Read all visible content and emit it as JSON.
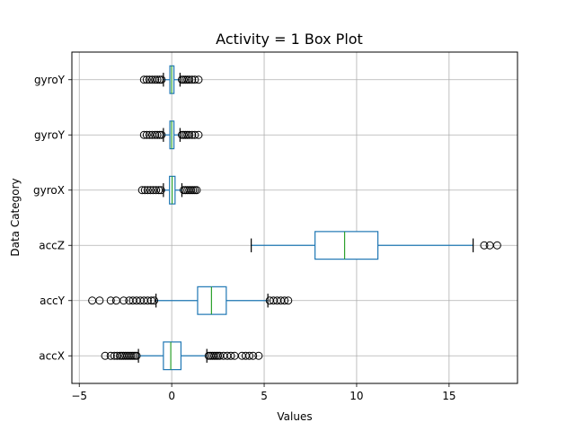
{
  "chart_data": {
    "type": "boxplot",
    "orientation": "horizontal",
    "title": "Activity = 1  Box Plot",
    "xlabel": "Values",
    "ylabel": "Data Category",
    "xlim": [
      -5.4,
      18.7
    ],
    "xticks": [
      -5,
      0,
      5,
      10,
      15
    ],
    "grid": true,
    "box_color": "#1f77b4",
    "median_color": "#2ca02c",
    "categories": [
      "accX",
      "accY",
      "accZ",
      "gyroX",
      "gyroY",
      "gyroY"
    ],
    "boxes": [
      {
        "label": "accX",
        "whisker_low": -1.8,
        "q1": -0.45,
        "median": -0.05,
        "q3": 0.5,
        "whisker_high": 1.9,
        "outliers_low": [
          -3.6,
          -3.3,
          -3.1,
          -2.95,
          -2.8,
          -2.7,
          -2.6,
          -2.5,
          -2.4,
          -2.3,
          -2.2,
          -2.1,
          -2.0,
          -1.9
        ],
        "outliers_high": [
          2.0,
          2.1,
          2.2,
          2.3,
          2.4,
          2.5,
          2.6,
          2.8,
          3.0,
          3.2,
          3.4,
          3.8,
          4.0,
          4.2,
          4.4,
          4.7
        ]
      },
      {
        "label": "accY",
        "whisker_low": -0.85,
        "q1": 1.4,
        "median": 2.15,
        "q3": 2.95,
        "whisker_high": 5.2,
        "outliers_low": [
          -4.3,
          -3.9,
          -3.3,
          -3.0,
          -2.6,
          -2.3,
          -2.1,
          -1.9,
          -1.7,
          -1.5,
          -1.3,
          -1.1,
          -0.95
        ],
        "outliers_high": [
          5.3,
          5.5,
          5.7,
          5.9,
          6.1,
          6.3
        ]
      },
      {
        "label": "accZ",
        "whisker_low": 4.3,
        "q1": 7.75,
        "median": 9.35,
        "q3": 11.15,
        "whisker_high": 16.3,
        "outliers_low": [],
        "outliers_high": [
          16.9,
          17.2,
          17.6
        ]
      },
      {
        "label": "gyroX",
        "whisker_low": -0.45,
        "q1": -0.12,
        "median": 0.02,
        "q3": 0.18,
        "whisker_high": 0.55,
        "outliers_low": [
          -1.6,
          -1.45,
          -1.3,
          -1.15,
          -1.0,
          -0.85,
          -0.7,
          -0.58
        ],
        "outliers_high": [
          0.65,
          0.75,
          0.85,
          0.95,
          1.05,
          1.15,
          1.25,
          1.35
        ]
      },
      {
        "label": "gyroY",
        "whisker_low": -0.45,
        "q1": -0.1,
        "median": 0.0,
        "q3": 0.12,
        "whisker_high": 0.45,
        "outliers_low": [
          -1.5,
          -1.35,
          -1.2,
          -1.05,
          -0.9,
          -0.78,
          -0.66,
          -0.55
        ],
        "outliers_high": [
          0.55,
          0.65,
          0.75,
          0.85,
          0.95,
          1.1,
          1.25,
          1.45
        ]
      },
      {
        "label": "gyroY",
        "whisker_low": -0.45,
        "q1": -0.1,
        "median": 0.0,
        "q3": 0.12,
        "whisker_high": 0.45,
        "outliers_low": [
          -1.5,
          -1.35,
          -1.2,
          -1.05,
          -0.9,
          -0.78,
          -0.66,
          -0.55
        ],
        "outliers_high": [
          0.55,
          0.65,
          0.75,
          0.85,
          0.95,
          1.1,
          1.25,
          1.45
        ]
      }
    ]
  }
}
